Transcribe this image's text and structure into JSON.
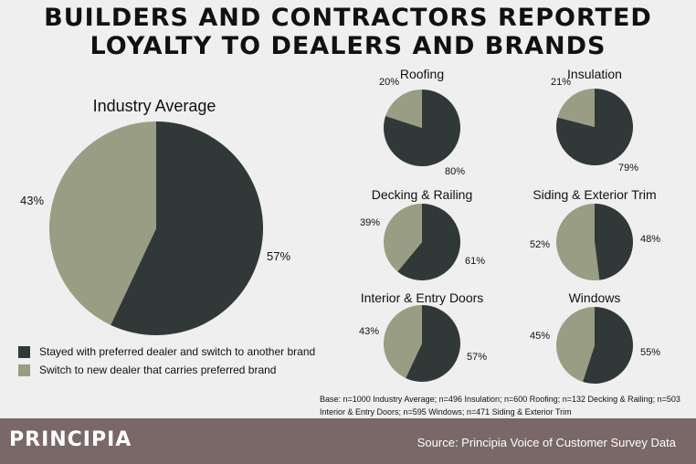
{
  "title": [
    "BUILDERS AND CONTRACTORS REPORTED",
    "LOYALTY TO DEALERS AND BRANDS"
  ],
  "colors": {
    "stayed": "#313838",
    "switched": "#999d83",
    "background": "#efefef",
    "footer": "#7a6767"
  },
  "chart_data": [
    {
      "type": "pie",
      "title": "Industry Average",
      "labels": [
        "Stayed with preferred dealer and switch to another brand",
        "Switch to new dealer that carries preferred brand"
      ],
      "values": [
        57,
        43
      ],
      "value_labels": [
        "57%",
        "43%"
      ]
    },
    {
      "type": "pie",
      "title": "Roofing",
      "values": [
        80,
        20
      ],
      "value_labels": [
        "80%",
        "20%"
      ]
    },
    {
      "type": "pie",
      "title": "Insulation",
      "values": [
        79,
        21
      ],
      "value_labels": [
        "79%",
        "21%"
      ]
    },
    {
      "type": "pie",
      "title": "Decking & Railing",
      "values": [
        61,
        39
      ],
      "value_labels": [
        "61%",
        "39%"
      ]
    },
    {
      "type": "pie",
      "title": "Siding & Exterior Trim",
      "values": [
        48,
        52
      ],
      "value_labels": [
        "48%",
        "52%"
      ]
    },
    {
      "type": "pie",
      "title": "Interior & Entry Doors",
      "values": [
        57,
        43
      ],
      "value_labels": [
        "57%",
        "43%"
      ]
    },
    {
      "type": "pie",
      "title": "Windows",
      "values": [
        55,
        45
      ],
      "value_labels": [
        "55%",
        "45%"
      ]
    }
  ],
  "legend": [
    {
      "label": "Stayed with preferred dealer and switch to another brand",
      "color": "#313838"
    },
    {
      "label": "Switch to new dealer that carries preferred brand",
      "color": "#999d83"
    }
  ],
  "base_note": "Base: n=1000 Industry Average; n=496 Insulation; n=600 Roofing; n=132 Decking & Railing; n=503 Interior & Entry Doors; n=595 Windows; n=471 Siding & Exterior Trim",
  "footer": {
    "brand": "PRINCIPIA",
    "source": "Source: Principia Voice of Customer Survey Data"
  }
}
